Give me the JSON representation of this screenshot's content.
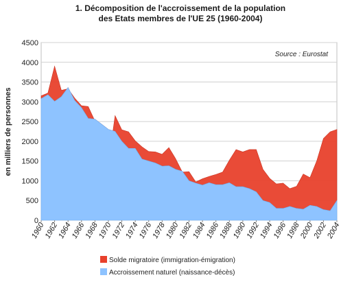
{
  "chart_data": {
    "type": "area",
    "title_line1": "1.  Décomposition de l'accroissement de la population",
    "title_line2": "des Etats membres de l'UE 25 (1960-2004)",
    "ylabel": "en milliers de personnes",
    "xlabel": "",
    "source": "Source : Eurostat",
    "ylim": [
      0,
      4500
    ],
    "yticks": [
      0,
      500,
      1000,
      1500,
      2000,
      2500,
      3000,
      3500,
      4000,
      4500
    ],
    "x": [
      1960,
      1961,
      1962,
      1963,
      1964,
      1965,
      1966,
      1967,
      1968,
      1969,
      1970,
      1971,
      1972,
      1973,
      1974,
      1975,
      1976,
      1977,
      1978,
      1979,
      1980,
      1981,
      1982,
      1983,
      1984,
      1985,
      1986,
      1987,
      1988,
      1989,
      1990,
      1991,
      1992,
      1993,
      1994,
      1995,
      1996,
      1997,
      1998,
      1999,
      2000,
      2001,
      2002,
      2003,
      2004
    ],
    "xticks": [
      1960,
      1962,
      1964,
      1966,
      1968,
      1970,
      1972,
      1974,
      1976,
      1978,
      1980,
      1982,
      1984,
      1986,
      1988,
      1990,
      1992,
      1994,
      1996,
      1998,
      2000,
      2002,
      2004
    ],
    "grid": true,
    "legend_position": "bottom",
    "series": [
      {
        "name": "Solde migratoire (immigration-émigration)",
        "color": "#e8412c",
        "values": [
          70,
          40,
          890,
          160,
          -30,
          60,
          50,
          300,
          -50,
          -150,
          -860,
          400,
          290,
          420,
          190,
          310,
          240,
          280,
          300,
          460,
          270,
          -20,
          230,
          30,
          160,
          160,
          260,
          320,
          570,
          940,
          880,
          990,
          1070,
          790,
          610,
          620,
          640,
          450,
          560,
          890,
          700,
          1150,
          1800,
          2000,
          1800
        ]
      },
      {
        "name": "Accroissement naturel (naissance-décès)",
        "color": "#8ec3ff",
        "values": [
          3080,
          3180,
          3010,
          3130,
          3360,
          3030,
          2850,
          2580,
          2560,
          2430,
          2300,
          2250,
          2000,
          1820,
          1820,
          1550,
          1500,
          1450,
          1370,
          1380,
          1290,
          1240,
          1000,
          940,
          890,
          950,
          900,
          900,
          950,
          850,
          850,
          800,
          720,
          500,
          450,
          300,
          300,
          350,
          300,
          280,
          380,
          350,
          270,
          240,
          500
        ]
      }
    ]
  }
}
